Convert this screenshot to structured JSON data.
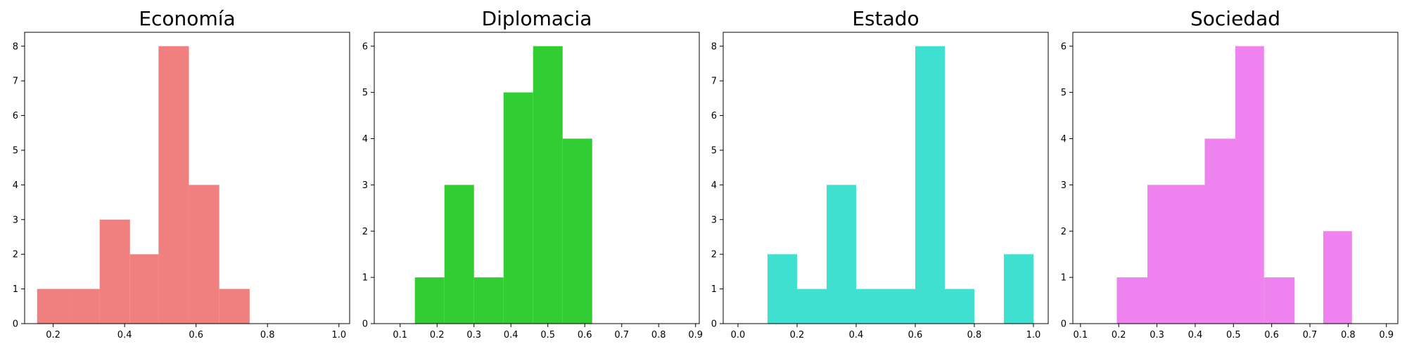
{
  "chart_data": [
    {
      "type": "bar",
      "title": "Economía",
      "color": "#F08080",
      "bins": [
        {
          "x0": 0.155,
          "x1": 0.245,
          "count": 1
        },
        {
          "x0": 0.245,
          "x1": 0.33,
          "count": 1
        },
        {
          "x0": 0.33,
          "x1": 0.415,
          "count": 3
        },
        {
          "x0": 0.415,
          "x1": 0.495,
          "count": 2
        },
        {
          "x0": 0.495,
          "x1": 0.58,
          "count": 8
        },
        {
          "x0": 0.58,
          "x1": 0.665,
          "count": 4
        },
        {
          "x0": 0.665,
          "x1": 0.75,
          "count": 1
        }
      ],
      "xlim": [
        0.12,
        1.03
      ],
      "ylim": [
        0,
        8.4
      ],
      "xticks": [
        0.2,
        0.4,
        0.6,
        0.8,
        1.0
      ],
      "xtick_labels": [
        "0.2",
        "0.4",
        "0.6",
        "0.8",
        "1.0"
      ],
      "yticks": [
        0,
        1,
        2,
        3,
        4,
        5,
        6,
        7,
        8
      ],
      "ytick_labels": [
        "0",
        "1",
        "2",
        "3",
        "4",
        "5",
        "6",
        "7",
        "8"
      ]
    },
    {
      "type": "bar",
      "title": "Diplomacia",
      "color": "#32CD32",
      "bins": [
        {
          "x0": 0.14,
          "x1": 0.22,
          "count": 1
        },
        {
          "x0": 0.22,
          "x1": 0.3,
          "count": 3
        },
        {
          "x0": 0.3,
          "x1": 0.38,
          "count": 1
        },
        {
          "x0": 0.38,
          "x1": 0.46,
          "count": 5
        },
        {
          "x0": 0.46,
          "x1": 0.54,
          "count": 6
        },
        {
          "x0": 0.54,
          "x1": 0.62,
          "count": 4
        }
      ],
      "xlim": [
        0.03,
        0.91
      ],
      "ylim": [
        0,
        6.3
      ],
      "xticks": [
        0.1,
        0.2,
        0.3,
        0.4,
        0.5,
        0.6,
        0.7,
        0.8,
        0.9
      ],
      "xtick_labels": [
        "0.1",
        "0.2",
        "0.3",
        "0.4",
        "0.5",
        "0.6",
        "0.7",
        "0.8",
        "0.9"
      ],
      "yticks": [
        0,
        1,
        2,
        3,
        4,
        5,
        6
      ],
      "ytick_labels": [
        "0",
        "1",
        "2",
        "3",
        "4",
        "5",
        "6"
      ]
    },
    {
      "type": "bar",
      "title": "Estado",
      "color": "#40E0D0",
      "bins": [
        {
          "x0": 0.1,
          "x1": 0.2,
          "count": 2
        },
        {
          "x0": 0.2,
          "x1": 0.3,
          "count": 1
        },
        {
          "x0": 0.3,
          "x1": 0.4,
          "count": 4
        },
        {
          "x0": 0.4,
          "x1": 0.5,
          "count": 1
        },
        {
          "x0": 0.5,
          "x1": 0.6,
          "count": 1
        },
        {
          "x0": 0.6,
          "x1": 0.7,
          "count": 8
        },
        {
          "x0": 0.7,
          "x1": 0.8,
          "count": 1
        },
        {
          "x0": 0.9,
          "x1": 1.0,
          "count": 2
        }
      ],
      "xlim": [
        -0.05,
        1.05
      ],
      "ylim": [
        0,
        8.4
      ],
      "xticks": [
        0.0,
        0.2,
        0.4,
        0.6,
        0.8,
        1.0
      ],
      "xtick_labels": [
        "0.0",
        "0.2",
        "0.4",
        "0.6",
        "0.8",
        "1.0"
      ],
      "yticks": [
        0,
        1,
        2,
        3,
        4,
        5,
        6,
        7,
        8
      ],
      "ytick_labels": [
        "0",
        "1",
        "2",
        "3",
        "4",
        "5",
        "6",
        "7",
        "8"
      ]
    },
    {
      "type": "bar",
      "title": "Sociedad",
      "color": "#EE82EE",
      "bins": [
        {
          "x0": 0.195,
          "x1": 0.275,
          "count": 1
        },
        {
          "x0": 0.275,
          "x1": 0.355,
          "count": 3
        },
        {
          "x0": 0.355,
          "x1": 0.425,
          "count": 3
        },
        {
          "x0": 0.425,
          "x1": 0.505,
          "count": 4
        },
        {
          "x0": 0.505,
          "x1": 0.58,
          "count": 6
        },
        {
          "x0": 0.58,
          "x1": 0.66,
          "count": 1
        },
        {
          "x0": 0.735,
          "x1": 0.81,
          "count": 2
        }
      ],
      "xlim": [
        0.08,
        0.93
      ],
      "ylim": [
        0,
        6.3
      ],
      "xticks": [
        0.1,
        0.2,
        0.3,
        0.4,
        0.5,
        0.6,
        0.7,
        0.8,
        0.9
      ],
      "xtick_labels": [
        "0.1",
        "0.2",
        "0.3",
        "0.4",
        "0.5",
        "0.6",
        "0.7",
        "0.8",
        "0.9"
      ],
      "yticks": [
        0,
        1,
        2,
        3,
        4,
        5,
        6
      ],
      "ytick_labels": [
        "0",
        "1",
        "2",
        "3",
        "4",
        "5",
        "6"
      ]
    }
  ]
}
